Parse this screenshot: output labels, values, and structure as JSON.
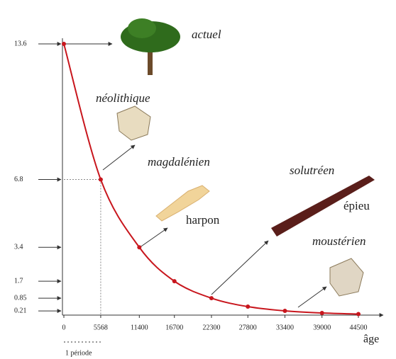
{
  "chart_data": {
    "type": "line",
    "x": [
      0,
      5568,
      11400,
      16700,
      22300,
      27800,
      33400,
      39000,
      44500
    ],
    "series": [
      {
        "color": "#c8161d",
        "values": [
          13.6,
          6.8,
          3.4,
          1.7,
          0.85,
          0.425,
          0.2125,
          0.10625,
          0.053
        ]
      }
    ],
    "xlim": [
      0,
      44500
    ],
    "xticks": [
      0,
      5568,
      11400,
      16700,
      22300,
      27800,
      33400,
      39000,
      44500
    ],
    "ylim": [
      0,
      13.6
    ],
    "yticks": [
      13.6,
      6.8,
      3.4,
      1.7,
      0.85,
      0.21
    ],
    "xlabel": "âge",
    "period_label": "1 période",
    "annotations": [
      "actuel",
      "néolithique",
      "magdalénien",
      "harpon",
      "solutréen",
      "épieu",
      "moustérien"
    ]
  }
}
